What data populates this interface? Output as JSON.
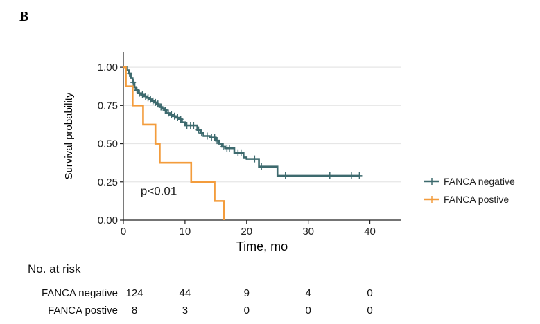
{
  "panel_label": "B",
  "chart_data": {
    "type": "line",
    "subtype": "kaplan-meier",
    "xlabel": "Time, mo",
    "ylabel": "Survival probability",
    "xlim": [
      0,
      45
    ],
    "ylim": [
      0,
      1.1
    ],
    "x_ticks": [
      0,
      10,
      20,
      30,
      40
    ],
    "y_ticks": [
      0.0,
      0.25,
      0.5,
      0.75,
      1.0
    ],
    "y_tick_labels": [
      "0.00",
      "0.25",
      "0.50",
      "0.75",
      "1.00"
    ],
    "grid": "horizontal",
    "legend_position": "right",
    "annotation": "p<0.01",
    "series": [
      {
        "name": "FANCA negative",
        "color": "#3d6a6e",
        "steps": [
          [
            0,
            1.0
          ],
          [
            0.5,
            0.98
          ],
          [
            0.9,
            0.96
          ],
          [
            1.2,
            0.93
          ],
          [
            1.5,
            0.9
          ],
          [
            1.8,
            0.87
          ],
          [
            2.0,
            0.85
          ],
          [
            2.4,
            0.83
          ],
          [
            2.9,
            0.82
          ],
          [
            3.4,
            0.81
          ],
          [
            3.8,
            0.8
          ],
          [
            4.2,
            0.79
          ],
          [
            4.6,
            0.78
          ],
          [
            5.0,
            0.77
          ],
          [
            5.4,
            0.76
          ],
          [
            5.7,
            0.75
          ],
          [
            6.0,
            0.74
          ],
          [
            6.3,
            0.73
          ],
          [
            6.6,
            0.72
          ],
          [
            7.0,
            0.7
          ],
          [
            7.5,
            0.69
          ],
          [
            8.0,
            0.68
          ],
          [
            8.5,
            0.67
          ],
          [
            9.0,
            0.66
          ],
          [
            9.5,
            0.64
          ],
          [
            10.0,
            0.62
          ],
          [
            12.0,
            0.59
          ],
          [
            12.5,
            0.57
          ],
          [
            13.0,
            0.55
          ],
          [
            14.0,
            0.54
          ],
          [
            15.0,
            0.52
          ],
          [
            15.5,
            0.5
          ],
          [
            16.0,
            0.48
          ],
          [
            16.5,
            0.47
          ],
          [
            18.0,
            0.44
          ],
          [
            19.5,
            0.41
          ],
          [
            20.0,
            0.4
          ],
          [
            22.0,
            0.35
          ],
          [
            25.0,
            0.29
          ]
        ],
        "end_x": 38.3,
        "censor_x": [
          1.0,
          1.6,
          2.2,
          2.6,
          3.1,
          3.6,
          4.0,
          4.4,
          4.8,
          5.2,
          5.6,
          6.1,
          6.8,
          7.3,
          7.8,
          8.3,
          8.8,
          9.3,
          10.3,
          10.9,
          11.4,
          12.2,
          12.7,
          13.6,
          14.3,
          14.8,
          15.2,
          16.2,
          16.8,
          17.2,
          18.6,
          19.1,
          21.3,
          22.4,
          26.3,
          33.5,
          37.0,
          38.3
        ]
      },
      {
        "name": "FANCA postive",
        "color": "#f39c3c",
        "steps": [
          [
            0,
            1.0
          ],
          [
            0.4,
            0.875
          ],
          [
            1.5,
            0.75
          ],
          [
            3.2,
            0.625
          ],
          [
            5.2,
            0.5
          ],
          [
            5.9,
            0.375
          ],
          [
            11.0,
            0.25
          ],
          [
            14.8,
            0.125
          ],
          [
            16.3,
            0.0
          ]
        ],
        "end_x": 16.3,
        "censor_x": []
      }
    ]
  },
  "risk_table": {
    "title": "No. at risk",
    "time_points": [
      0,
      10,
      20,
      30,
      40
    ],
    "rows": [
      {
        "label": "FANCA negative",
        "values": [
          "124",
          "44",
          "9",
          "4",
          "0"
        ]
      },
      {
        "label": "FANCA postive",
        "values": [
          "8",
          "3",
          "0",
          "0",
          "0"
        ]
      }
    ]
  }
}
